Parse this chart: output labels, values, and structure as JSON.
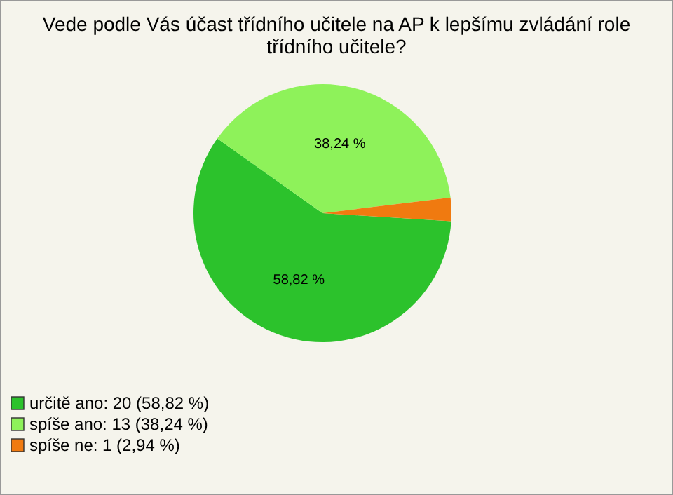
{
  "chart_data": {
    "type": "pie",
    "title": "Vede podle Vás účast třídního učitele na AP k lepšímu zvládání role třídního učitele?",
    "categories": [
      "určitě ano: 20 (58,82 %)",
      "spíše ano: 13 (38,24 %)",
      "spíše ne: 1 (2,94 %)"
    ],
    "values": [
      58.82,
      38.24,
      2.94
    ],
    "colors": [
      "#2cc22c",
      "#8ef25a",
      "#f07a10"
    ],
    "value_labels": [
      "58,82 %",
      "38,24 %",
      null
    ],
    "legend": "bottom left"
  }
}
